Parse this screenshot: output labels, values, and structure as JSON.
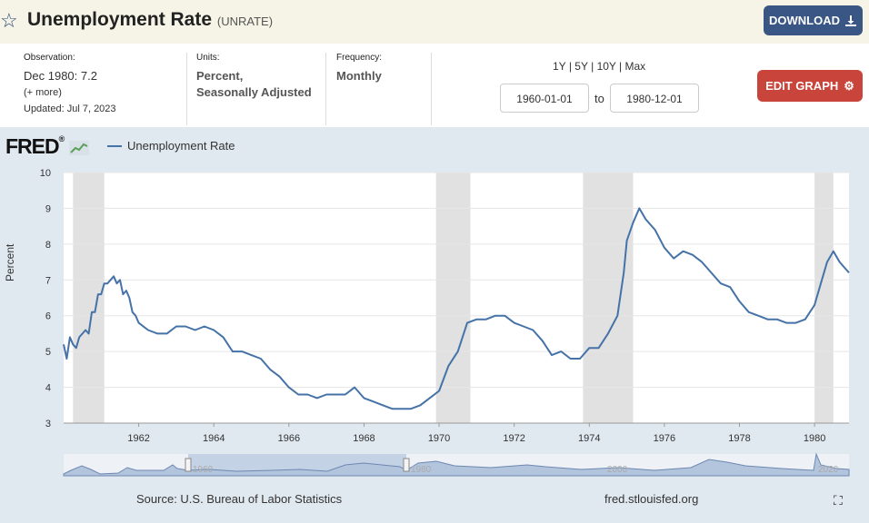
{
  "header": {
    "title": "Unemployment Rate",
    "series_id": "(UNRATE)",
    "download_label": "DOWNLOAD",
    "star_icon": "star-icon",
    "download_icon": "download-icon"
  },
  "meta": {
    "observation_label": "Observation:",
    "observation_value": "Dec 1980: 7.2",
    "more_label": "(+ more)",
    "updated_label": "Updated:",
    "updated_value": "Jul 7, 2023",
    "units_label": "Units:",
    "units_line1": "Percent,",
    "units_line2": "Seasonally Adjusted",
    "frequency_label": "Frequency:",
    "frequency_value": "Monthly",
    "range_1y": "1Y",
    "range_5y": "5Y",
    "range_10y": "10Y",
    "range_max": "Max",
    "sep": "|",
    "start_date": "1960-01-01",
    "to_label": "to",
    "end_date": "1980-12-01",
    "edit_label": "EDIT GRAPH"
  },
  "brand": {
    "logo": "FRED",
    "logo_mark": "®"
  },
  "footer": {
    "source": "Source: U.S. Bureau of Labor Statistics",
    "site": "fred.stlouisfed.org"
  },
  "colors": {
    "line": "#4572a7",
    "recession": "#e1e1e1",
    "navigator": "#b3c4dd"
  },
  "chart_data": {
    "type": "line",
    "title": "Unemployment Rate",
    "ylabel": "Percent",
    "xlabel": "",
    "ylim": [
      3,
      10
    ],
    "xlim": [
      1960.0,
      1980.917
    ],
    "yticks": [
      3,
      4,
      5,
      6,
      7,
      8,
      9,
      10
    ],
    "xticks": [
      1962,
      1964,
      1966,
      1968,
      1970,
      1972,
      1974,
      1976,
      1978,
      1980
    ],
    "legend": [
      "Unemployment Rate"
    ],
    "recessions": [
      [
        1960.25,
        1961.083
      ],
      [
        1969.917,
        1970.833
      ],
      [
        1973.833,
        1975.167
      ],
      [
        1980.0,
        1980.5
      ]
    ],
    "series": [
      {
        "name": "Unemployment Rate",
        "x": [
          1960.0,
          1960.083,
          1960.167,
          1960.25,
          1960.333,
          1960.417,
          1960.5,
          1960.583,
          1960.667,
          1960.75,
          1960.833,
          1960.917,
          1961.0,
          1961.083,
          1961.167,
          1961.25,
          1961.333,
          1961.417,
          1961.5,
          1961.583,
          1961.667,
          1961.75,
          1961.833,
          1961.917,
          1962.0,
          1962.25,
          1962.5,
          1962.75,
          1963.0,
          1963.25,
          1963.5,
          1963.75,
          1964.0,
          1964.25,
          1964.5,
          1964.75,
          1965.0,
          1965.25,
          1965.5,
          1965.75,
          1966.0,
          1966.25,
          1966.5,
          1966.75,
          1967.0,
          1967.25,
          1967.5,
          1967.75,
          1968.0,
          1968.25,
          1968.5,
          1968.75,
          1969.0,
          1969.25,
          1969.5,
          1969.75,
          1970.0,
          1970.25,
          1970.5,
          1970.75,
          1971.0,
          1971.25,
          1971.5,
          1971.75,
          1972.0,
          1972.25,
          1972.5,
          1972.75,
          1973.0,
          1973.25,
          1973.5,
          1973.75,
          1974.0,
          1974.25,
          1974.5,
          1974.75,
          1974.917,
          1975.0,
          1975.167,
          1975.333,
          1975.5,
          1975.75,
          1976.0,
          1976.25,
          1976.5,
          1976.75,
          1977.0,
          1977.25,
          1977.5,
          1977.75,
          1978.0,
          1978.25,
          1978.5,
          1978.75,
          1979.0,
          1979.25,
          1979.5,
          1979.75,
          1980.0,
          1980.167,
          1980.333,
          1980.5,
          1980.667,
          1980.917
        ],
        "y": [
          5.2,
          4.8,
          5.4,
          5.2,
          5.1,
          5.4,
          5.5,
          5.6,
          5.5,
          6.1,
          6.1,
          6.6,
          6.6,
          6.9,
          6.9,
          7.0,
          7.1,
          6.9,
          7.0,
          6.6,
          6.7,
          6.5,
          6.1,
          6.0,
          5.8,
          5.6,
          5.5,
          5.5,
          5.7,
          5.7,
          5.6,
          5.7,
          5.6,
          5.4,
          5.0,
          5.0,
          4.9,
          4.8,
          4.5,
          4.3,
          4.0,
          3.8,
          3.8,
          3.7,
          3.8,
          3.8,
          3.8,
          4.0,
          3.7,
          3.6,
          3.5,
          3.4,
          3.4,
          3.4,
          3.5,
          3.7,
          3.9,
          4.6,
          5.0,
          5.8,
          5.9,
          5.9,
          6.0,
          6.0,
          5.8,
          5.7,
          5.6,
          5.3,
          4.9,
          5.0,
          4.8,
          4.8,
          5.1,
          5.1,
          5.5,
          6.0,
          7.2,
          8.1,
          8.6,
          9.0,
          8.7,
          8.4,
          7.9,
          7.6,
          7.8,
          7.7,
          7.5,
          7.2,
          6.9,
          6.8,
          6.4,
          6.1,
          6.0,
          5.9,
          5.9,
          5.8,
          5.8,
          5.9,
          6.3,
          6.9,
          7.5,
          7.8,
          7.5,
          7.2
        ]
      }
    ]
  },
  "navigator": {
    "labels": [
      "1960",
      "1980",
      "2000",
      "2020"
    ]
  }
}
